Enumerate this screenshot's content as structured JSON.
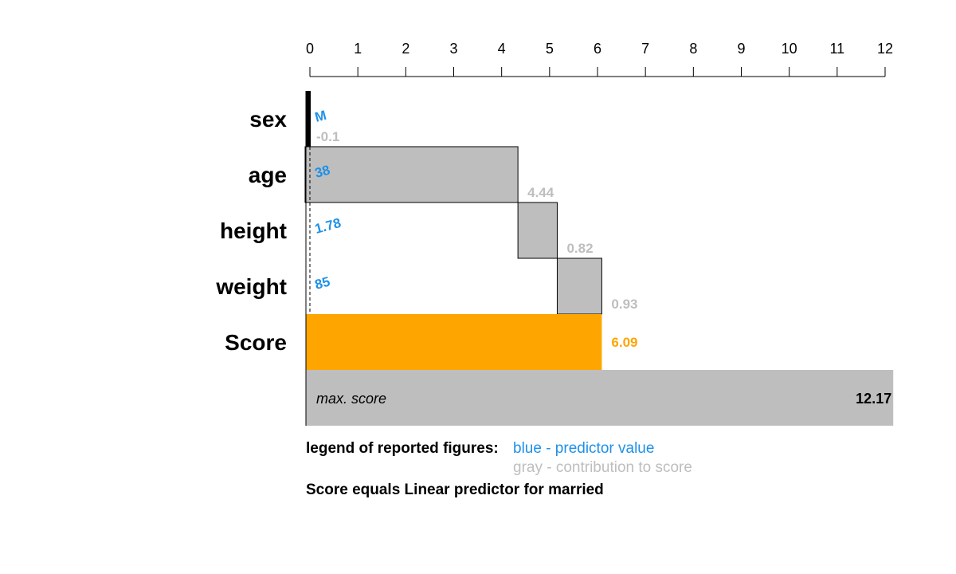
{
  "chart_data": {
    "type": "bar",
    "axis": {
      "min": 0,
      "max": 12,
      "ticks": [
        0,
        1,
        2,
        3,
        4,
        5,
        6,
        7,
        8,
        9,
        10,
        11,
        12
      ],
      "position": "top"
    },
    "rows": [
      {
        "label": "sex",
        "predictor_value": "M",
        "contribution": -0.1,
        "contribution_label": "-0.1"
      },
      {
        "label": "age",
        "predictor_value": "38",
        "contribution": 4.44,
        "contribution_label": "4.44"
      },
      {
        "label": "height",
        "predictor_value": "1.78",
        "contribution": 0.82,
        "contribution_label": "0.82"
      },
      {
        "label": "weight",
        "predictor_value": "85",
        "contribution": 0.93,
        "contribution_label": "0.93"
      }
    ],
    "score": {
      "label": "Score",
      "value": 6.09,
      "value_label": "6.09"
    },
    "max_score": {
      "label": "max. score",
      "value": 12.17,
      "value_label": "12.17"
    },
    "legend": {
      "title": "legend of reported figures:",
      "predictor": "blue - predictor value",
      "contribution": "gray - contribution to score"
    },
    "footnote": "Score equals Linear predictor for married",
    "colors": {
      "predictor": "#1e90e8",
      "contribution": "#bebebe",
      "score": "#ffa500",
      "bar": "#bebebe"
    }
  }
}
